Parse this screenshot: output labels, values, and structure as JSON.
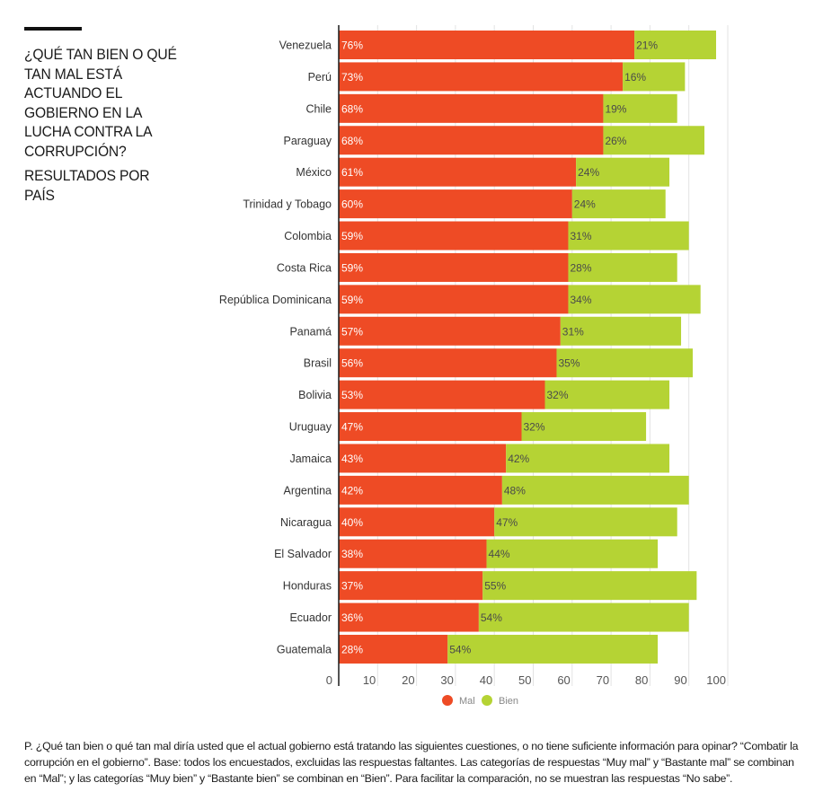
{
  "header": {
    "title": "¿QUÉ TAN BIEN O QUÉ TAN MAL ESTÁ ACTUANDO EL GOBIERNO EN LA LUCHA CONTRA LA CORRUPCIÓN?",
    "subtitle": "RESULTADOS POR PAÍS"
  },
  "footnote": "P. ¿Qué tan bien o qué tan mal diría usted que el actual gobierno está tratando las siguientes cuestiones, o no tiene suficiente información para opinar? “Combatir la corrupción en el gobierno”. Base: todos los encuestados, excluidas las respuestas faltantes. Las categorías de respuestas “Muy mal” y “Bastante mal” se combinan en “Mal”; y las categorías “Muy bien” y “Bastante bien” se combinan en “Bien”. Para facilitar la comparación, no se muestran las respuestas “No sabe”.",
  "chart_data": {
    "type": "bar",
    "orientation": "horizontal",
    "stacked": true,
    "title": "¿QUÉ TAN BIEN O QUÉ TAN MAL ESTÁ ACTUANDO EL GOBIERNO EN LA LUCHA CONTRA LA CORRUPCIÓN?",
    "subtitle": "RESULTADOS POR PAÍS",
    "categories": [
      "Venezuela",
      "Perú",
      "Chile",
      "Paraguay",
      "México",
      "Trinidad y Tobago",
      "Colombia",
      "Costa Rica",
      "República Dominicana",
      "Panamá",
      "Brasil",
      "Bolivia",
      "Uruguay",
      "Jamaica",
      "Argentina",
      "Nicaragua",
      "El Salvador",
      "Honduras",
      "Ecuador",
      "Guatemala"
    ],
    "series": [
      {
        "name": "Mal",
        "color": "#ee4b25",
        "values": [
          76,
          73,
          68,
          68,
          61,
          60,
          59,
          59,
          59,
          57,
          56,
          53,
          47,
          43,
          42,
          40,
          38,
          37,
          36,
          28
        ],
        "labels": [
          "76%",
          "73%",
          "68%",
          "68%",
          "61%",
          "60%",
          "59%",
          "59%",
          "59%",
          "57%",
          "56%",
          "53%",
          "47%",
          "43%",
          "42%",
          "40%",
          "38%",
          "37%",
          "36%",
          "28%"
        ]
      },
      {
        "name": "Bien",
        "color": "#b5d334",
        "values": [
          21,
          16,
          19,
          26,
          24,
          24,
          31,
          28,
          34,
          31,
          35,
          32,
          32,
          42,
          48,
          47,
          44,
          55,
          54,
          54
        ],
        "labels": [
          "21%",
          "16%",
          "19%",
          "26%",
          "24%",
          "24%",
          "31%",
          "28%",
          "34%",
          "31%",
          "35%",
          "32%",
          "32%",
          "42%",
          "48%",
          "47%",
          "44%",
          "55%",
          "54%",
          "54%"
        ]
      }
    ],
    "xlim": [
      0,
      100
    ],
    "xticks": [
      0,
      10,
      20,
      30,
      40,
      50,
      60,
      70,
      80,
      90,
      100
    ],
    "xtick_labels": [
      "0",
      "10",
      "20",
      "30",
      "40",
      "50",
      "60",
      "70",
      "80",
      "90",
      "100"
    ],
    "grid": "vertical",
    "legend": "bottom-center",
    "xlabel": "",
    "ylabel": ""
  }
}
